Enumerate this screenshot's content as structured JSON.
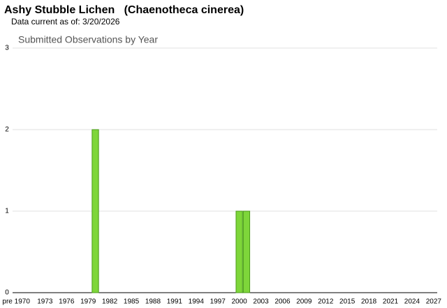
{
  "header": {
    "title": "Ashy Stubble Lichen   (Chaenotheca cinerea)",
    "subtitle": "Data current as of: 3/20/2026"
  },
  "chart_data": {
    "type": "bar",
    "title": "Submitted Observations by Year",
    "categories": [
      "pre 1970",
      null,
      null,
      null,
      "1973",
      null,
      null,
      "1976",
      null,
      null,
      "1979",
      null,
      null,
      "1982",
      null,
      null,
      "1985",
      null,
      null,
      "1988",
      null,
      null,
      "1991",
      null,
      null,
      "1994",
      null,
      null,
      "1997",
      null,
      null,
      "2000",
      null,
      null,
      "2003",
      null,
      null,
      "2006",
      null,
      null,
      "2009",
      null,
      null,
      "2012",
      null,
      null,
      "2015",
      null,
      null,
      "2018",
      null,
      null,
      "2021",
      null,
      null,
      "2024",
      null,
      null,
      "2027"
    ],
    "values": [
      0,
      0,
      0,
      0,
      0,
      0,
      0,
      0,
      0,
      0,
      0,
      2,
      0,
      0,
      0,
      0,
      0,
      0,
      0,
      0,
      0,
      0,
      0,
      0,
      0,
      0,
      0,
      0,
      0,
      0,
      0,
      1,
      1,
      0,
      0,
      0,
      0,
      0,
      0,
      0,
      0,
      0,
      0,
      0,
      0,
      0,
      0,
      0,
      0,
      0,
      0,
      0,
      0,
      0,
      0,
      0,
      0,
      0,
      0
    ],
    "color": "#7ed63a",
    "ylim": [
      0,
      3
    ],
    "yticks": [
      0,
      1,
      2,
      3
    ],
    "grid": true
  }
}
